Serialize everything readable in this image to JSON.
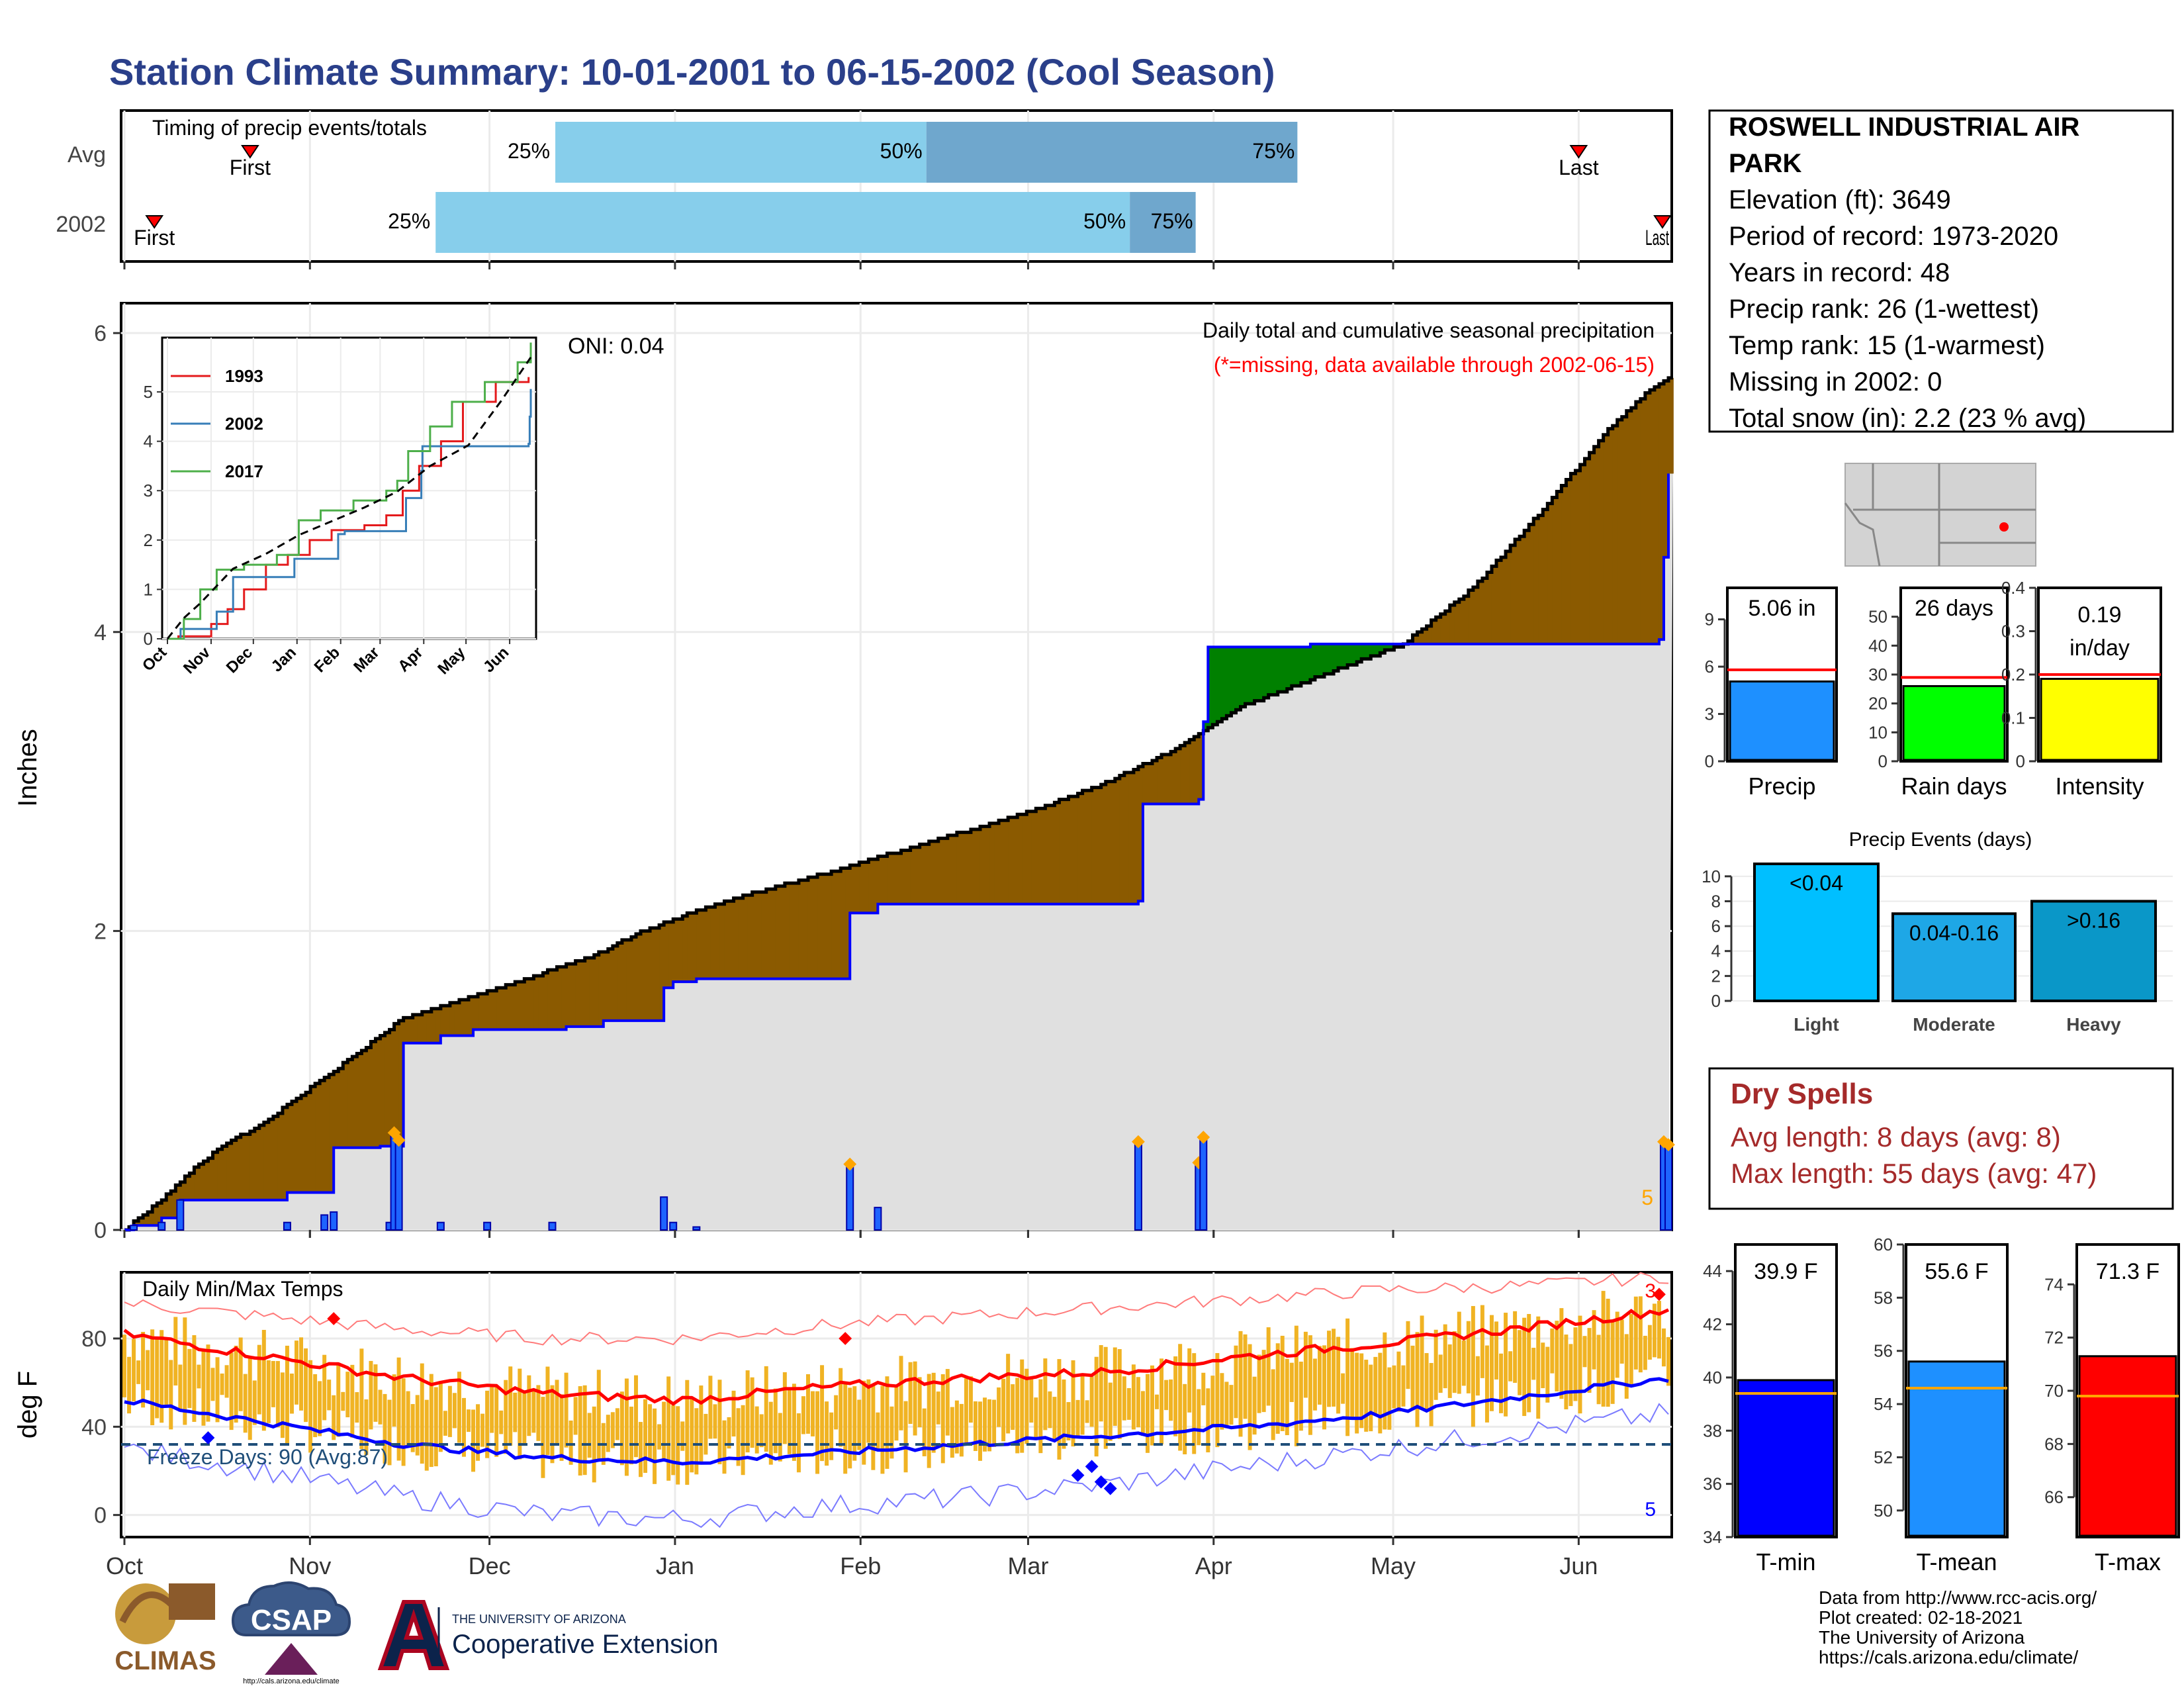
{
  "title": "Station Climate Summary: 10-01-2001 to 06-15-2002 (Cool Season)",
  "colors": {
    "title": "#2a3f8a",
    "timing_early": "#87ceeb",
    "timing_late": "#6fa7cd",
    "cum_brown": "#8b5a00",
    "cum_green": "#008000",
    "grey_fill": "#e0e0e0",
    "blue_line": "#0000ff",
    "daily_bar": "#1e64ff",
    "marker_orange": "#ffa500",
    "temp_bar": "#f0b323",
    "temp_red": "#ff0000",
    "temp_blue": "#0000ff",
    "freeze": "#1f4e79",
    "precip_bar": "#1e90ff",
    "rain_bar": "#00ff00",
    "intensity_bar": "#ffff00",
    "light": "#00bfff",
    "moderate": "#1ea7e6",
    "heavy": "#0a97c8",
    "dry_spell": "#a52a2a",
    "tmin_bar": "#0000ff",
    "tmean_bar": "#1e90ff",
    "tmax_bar": "#ff0000",
    "avg_line": "#ffa500"
  },
  "timing": {
    "title": "Timing of precip events/totals",
    "rows": [
      {
        "label": "Avg",
        "first": "First",
        "last": "Last",
        "p25": "25%",
        "p50": "50%",
        "p75": "75%",
        "first_date": "Oct 22",
        "p25_date": "Dec 12",
        "p50_date": "Feb 12",
        "p75_date": "Apr 15",
        "last_date": "Jun 1"
      },
      {
        "label": "2002",
        "first": "First",
        "last": "Last",
        "p25": "25%",
        "p50": "50%",
        "p75": "75%",
        "first_date": "Oct 6",
        "p25_date": "Nov 22",
        "p50_date": "Mar 18",
        "p75_date": "Mar 29",
        "last_date": "Jun 15"
      }
    ]
  },
  "chart_data": [
    {
      "type": "area",
      "name": "cumulative-precip",
      "title": "Daily total and cumulative seasonal precipitation",
      "subtitle": "(*=missing, data available through 2002-06-15)",
      "ylabel": "Inches",
      "ylim": [
        0,
        6.2
      ],
      "yticks": [
        0,
        2,
        4,
        6
      ],
      "grid": true,
      "oni_label": "ONI: 0.04",
      "x_tick_labels": [
        "Oct",
        "Nov",
        "Dec",
        "Jan",
        "Feb",
        "Mar",
        "Apr",
        "May",
        "Jun"
      ],
      "avg_cumulative": [
        [
          0,
          0
        ],
        [
          8,
          0.2
        ],
        [
          15,
          0.42
        ],
        [
          22,
          0.58
        ],
        [
          30,
          0.72
        ],
        [
          40,
          0.95
        ],
        [
          50,
          1.18
        ],
        [
          60,
          1.42
        ],
        [
          75,
          1.56
        ],
        [
          90,
          1.72
        ],
        [
          100,
          1.82
        ],
        [
          110,
          1.98
        ],
        [
          120,
          2.1
        ],
        [
          135,
          2.25
        ],
        [
          150,
          2.38
        ],
        [
          165,
          2.52
        ],
        [
          180,
          2.66
        ],
        [
          195,
          2.8
        ],
        [
          210,
          2.98
        ],
        [
          225,
          3.2
        ],
        [
          240,
          3.5
        ],
        [
          255,
          3.68
        ],
        [
          265,
          3.8
        ],
        [
          275,
          3.92
        ],
        [
          290,
          4.3
        ],
        [
          305,
          4.82
        ],
        [
          318,
          5.32
        ],
        [
          328,
          5.62
        ],
        [
          332,
          5.7
        ]
      ],
      "series_2002_cumulative": [
        [
          0,
          0
        ],
        [
          2,
          0.03
        ],
        [
          8,
          0.08
        ],
        [
          12,
          0.2
        ],
        [
          35,
          0.25
        ],
        [
          45,
          0.55
        ],
        [
          55,
          0.56
        ],
        [
          60,
          1.25
        ],
        [
          68,
          1.3
        ],
        [
          75,
          1.34
        ],
        [
          95,
          1.36
        ],
        [
          103,
          1.4
        ],
        [
          116,
          1.62
        ],
        [
          118,
          1.66
        ],
        [
          123,
          1.68
        ],
        [
          155,
          1.68
        ],
        [
          156,
          2.12
        ],
        [
          162,
          2.18
        ],
        [
          218,
          2.2
        ],
        [
          219,
          2.85
        ],
        [
          231,
          2.88
        ],
        [
          232,
          3.4
        ],
        [
          233,
          3.9
        ],
        [
          255,
          3.92
        ],
        [
          330,
          3.95
        ],
        [
          331,
          4.5
        ],
        [
          332,
          5.06
        ]
      ],
      "daily_precip": [
        [
          2,
          0.03
        ],
        [
          8,
          0.05
        ],
        [
          12,
          0.2
        ],
        [
          35,
          0.05
        ],
        [
          43,
          0.1
        ],
        [
          45,
          0.12
        ],
        [
          57,
          0.05
        ],
        [
          58,
          0.65
        ],
        [
          59,
          0.6
        ],
        [
          68,
          0.05
        ],
        [
          78,
          0.05
        ],
        [
          92,
          0.05
        ],
        [
          116,
          0.22
        ],
        [
          118,
          0.05
        ],
        [
          123,
          0.02
        ],
        [
          156,
          0.44
        ],
        [
          162,
          0.15
        ],
        [
          218,
          0.59
        ],
        [
          231,
          0.45
        ],
        [
          232,
          0.62
        ],
        [
          331,
          0.59
        ],
        [
          332,
          0.57
        ]
      ],
      "marker_label": "5"
    },
    {
      "type": "line",
      "name": "inset-cumulative",
      "x_tick_labels": [
        "Oct",
        "Nov",
        "Dec",
        "Jan",
        "Feb",
        "Mar",
        "Apr",
        "May",
        "Jun"
      ],
      "ylim": [
        0,
        6
      ],
      "yticks": [
        0,
        1,
        2,
        3,
        4,
        5
      ],
      "series": [
        {
          "name": "1993",
          "color": "#e41a1c",
          "values": [
            [
              0,
              0
            ],
            [
              10,
              0.05
            ],
            [
              40,
              0.3
            ],
            [
              55,
              0.6
            ],
            [
              70,
              1.0
            ],
            [
              90,
              1.5
            ],
            [
              110,
              1.7
            ],
            [
              130,
              2.0
            ],
            [
              150,
              2.2
            ],
            [
              180,
              2.3
            ],
            [
              200,
              2.5
            ],
            [
              215,
              3.0
            ],
            [
              230,
              3.5
            ],
            [
              250,
              4.0
            ],
            [
              270,
              4.8
            ],
            [
              300,
              5.2
            ],
            [
              330,
              5.3
            ]
          ]
        },
        {
          "name": "2002",
          "color": "#377eb8",
          "values": [
            [
              0,
              0
            ],
            [
              12,
              0.2
            ],
            [
              45,
              0.55
            ],
            [
              60,
              1.25
            ],
            [
              116,
              1.62
            ],
            [
              156,
              2.12
            ],
            [
              162,
              2.18
            ],
            [
              218,
              2.85
            ],
            [
              232,
              3.4
            ],
            [
              233,
              3.9
            ],
            [
              330,
              3.95
            ],
            [
              331,
              4.5
            ],
            [
              332,
              5.06
            ]
          ]
        },
        {
          "name": "2017",
          "color": "#4daf4a",
          "values": [
            [
              0,
              0
            ],
            [
              15,
              0.4
            ],
            [
              30,
              1.0
            ],
            [
              45,
              1.4
            ],
            [
              70,
              1.5
            ],
            [
              100,
              1.7
            ],
            [
              120,
              2.4
            ],
            [
              140,
              2.6
            ],
            [
              170,
              2.8
            ],
            [
              200,
              3.0
            ],
            [
              210,
              3.2
            ],
            [
              220,
              3.8
            ],
            [
              240,
              4.3
            ],
            [
              260,
              4.8
            ],
            [
              290,
              5.2
            ],
            [
              320,
              5.6
            ],
            [
              332,
              6.0
            ]
          ]
        }
      ],
      "avg_series": [
        [
          0,
          0
        ],
        [
          15,
          0.42
        ],
        [
          30,
          0.72
        ],
        [
          60,
          1.42
        ],
        [
          90,
          1.72
        ],
        [
          120,
          2.1
        ],
        [
          150,
          2.38
        ],
        [
          180,
          2.66
        ],
        [
          210,
          2.98
        ],
        [
          240,
          3.5
        ],
        [
          275,
          3.92
        ],
        [
          305,
          4.82
        ],
        [
          332,
          5.7
        ]
      ]
    },
    {
      "type": "bar",
      "name": "daily-temps",
      "title": "Daily Min/Max Temps",
      "ylabel": "deg F",
      "ylim": [
        -10,
        110
      ],
      "yticks": [
        0,
        40,
        80
      ],
      "freeze_label": "Freeze Days: 90 (Avg:87)",
      "freeze_line": 32,
      "x_tick_labels": [
        "Oct",
        "Nov",
        "Dec",
        "Jan",
        "Feb",
        "Mar",
        "Apr",
        "May",
        "Jun"
      ],
      "marker_labels": {
        "top": "3",
        "bottom": "5"
      },
      "avg_max": [
        [
          0,
          82
        ],
        [
          30,
          72
        ],
        [
          60,
          62
        ],
        [
          90,
          55
        ],
        [
          120,
          52
        ],
        [
          150,
          58
        ],
        [
          180,
          62
        ],
        [
          210,
          65
        ],
        [
          240,
          72
        ],
        [
          270,
          78
        ],
        [
          300,
          85
        ],
        [
          330,
          93
        ]
      ],
      "avg_min": [
        [
          0,
          52
        ],
        [
          30,
          42
        ],
        [
          60,
          32
        ],
        [
          90,
          26
        ],
        [
          120,
          24
        ],
        [
          150,
          28
        ],
        [
          180,
          32
        ],
        [
          210,
          36
        ],
        [
          240,
          40
        ],
        [
          270,
          46
        ],
        [
          300,
          54
        ],
        [
          330,
          62
        ]
      ],
      "record_max": [
        [
          0,
          96
        ],
        [
          30,
          90
        ],
        [
          60,
          84
        ],
        [
          90,
          80
        ],
        [
          120,
          80
        ],
        [
          150,
          86
        ],
        [
          180,
          90
        ],
        [
          210,
          94
        ],
        [
          240,
          98
        ],
        [
          270,
          102
        ],
        [
          300,
          104
        ],
        [
          330,
          108
        ]
      ],
      "record_min": [
        [
          0,
          30
        ],
        [
          30,
          20
        ],
        [
          60,
          8
        ],
        [
          90,
          0
        ],
        [
          120,
          -2
        ],
        [
          150,
          4
        ],
        [
          180,
          8
        ],
        [
          210,
          14
        ],
        [
          240,
          22
        ],
        [
          270,
          30
        ],
        [
          300,
          38
        ],
        [
          330,
          46
        ]
      ]
    },
    {
      "type": "bar",
      "name": "precip-compare",
      "categories": [
        "Precip",
        "Rain days",
        "Intensity"
      ],
      "values": [
        5.06,
        26,
        0.19
      ],
      "averages": [
        5.8,
        29,
        0.2
      ],
      "value_labels": [
        "5.06 in",
        "26 days",
        "0.19 in/day"
      ],
      "ylims": [
        [
          0,
          11
        ],
        [
          0,
          60
        ],
        [
          0,
          0.4
        ]
      ],
      "yticks": [
        [
          0,
          3,
          6,
          9
        ],
        [
          0,
          10,
          20,
          30,
          40,
          50
        ],
        [
          0.0,
          0.1,
          0.2,
          0.3,
          0.4
        ]
      ]
    },
    {
      "type": "bar",
      "name": "precip-events",
      "title": "Precip Events (days)",
      "categories": [
        "Light",
        "Moderate",
        "Heavy"
      ],
      "values": [
        11,
        7,
        8
      ],
      "value_labels": [
        "<0.04",
        "0.04-0.16",
        ">0.16"
      ],
      "ylim": [
        0,
        11
      ],
      "yticks": [
        0,
        2,
        4,
        6,
        8,
        10
      ]
    },
    {
      "type": "bar",
      "name": "temp-compare",
      "categories": [
        "T-min",
        "T-mean",
        "T-max"
      ],
      "values": [
        39.9,
        55.6,
        71.3
      ],
      "averages": [
        39.4,
        54.6,
        69.8
      ],
      "value_labels": [
        "39.9 F",
        "55.6 F",
        "71.3 F"
      ],
      "ylims": [
        [
          34,
          45
        ],
        [
          49,
          60
        ],
        [
          64.5,
          75.5
        ]
      ],
      "yticks": [
        [
          34,
          36,
          38,
          40,
          42,
          44
        ],
        [
          50,
          52,
          54,
          56,
          58,
          60
        ],
        [
          66,
          68,
          70,
          72,
          74
        ]
      ]
    }
  ],
  "station": {
    "lines": [
      "ROSWELL INDUSTRIAL AIR",
      "PARK",
      "Elevation (ft): 3649",
      "Period of record: 1973-2020",
      "Years in record: 48",
      "Precip rank: 26 (1-wettest)",
      "Temp rank: 15 (1-warmest)",
      "Missing in 2002: 0",
      "Total snow (in): 2.2 (23 % avg)"
    ]
  },
  "dry_spells": {
    "title": "Dry Spells",
    "avg": "Avg length: 8 days (avg: 8)",
    "max": "Max length: 55 days (avg: 47)"
  },
  "footer": {
    "lines": [
      "Data from http://www.rcc-acis.org/",
      "Plot created: 02-18-2021",
      "The University of Arizona",
      "https://cals.arizona.edu/climate/"
    ],
    "climas": "CLIMAS",
    "csap": "CSAP",
    "csap_url": "http://cals.arizona.edu/climate",
    "ua_small": "THE UNIVERSITY OF ARIZONA",
    "ua_big": "Cooperative Extension"
  }
}
